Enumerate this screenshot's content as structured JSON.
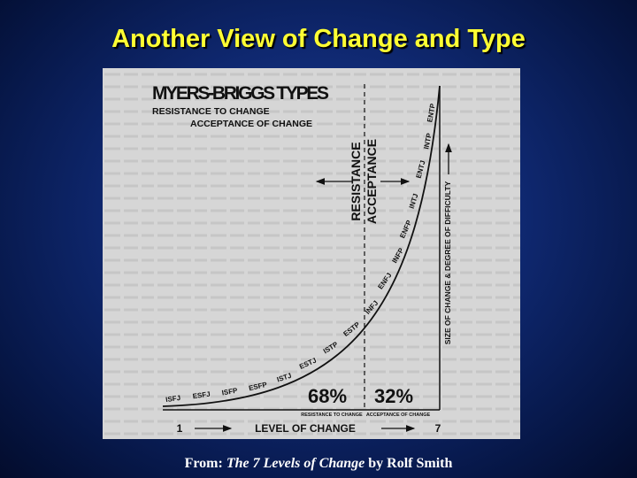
{
  "slide": {
    "title": "Another View of Change and Type",
    "figure": {
      "title": "MYERS-BRIGGS TYPES",
      "legend": [
        "RESISTANCE TO CHANGE",
        "ACCEPTANCE OF CHANGE"
      ],
      "divider_labels": [
        "RESISTANCE",
        "ACCEPTANCE"
      ],
      "types": [
        "ISFJ",
        "ESFJ",
        "ISFP",
        "ESFP",
        "ISTJ",
        "ESTJ",
        "ISTP",
        "ESTP",
        "INFJ",
        "ENFJ",
        "INFP",
        "ENFP",
        "INTJ",
        "ENTJ",
        "INTP",
        "ENTP"
      ],
      "percent_labels": [
        "68%",
        "32%"
      ],
      "region_labels": [
        "RESISTANCE TO CHANGE",
        "ACCEPTANCE OF CHANGE"
      ],
      "y_axis_label": "SIZE OF CHANGE & DEGREE OF DIFFICULTY",
      "x_axis": {
        "start": "1",
        "label": "LEVEL OF CHANGE",
        "end": "7"
      }
    },
    "caption": [
      "From:",
      "The 7 Levels of Change",
      "by Rolf Smith"
    ]
  }
}
